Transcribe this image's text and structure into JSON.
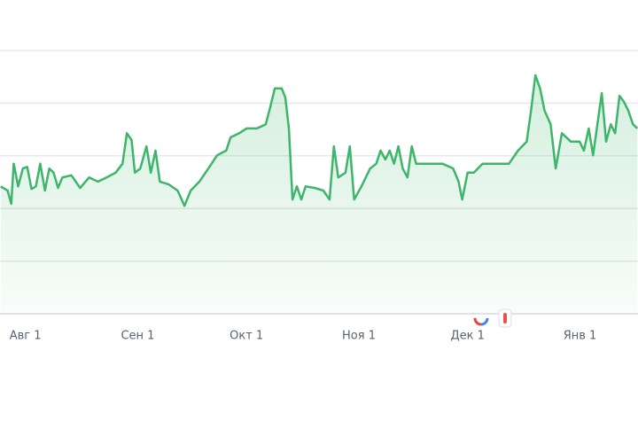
{
  "chart_data": {
    "type": "line",
    "x": [
      -6.8,
      -4.9,
      -3.9,
      -3.2,
      -2.0,
      -0.7,
      0.5,
      1.7,
      2.9,
      4.1,
      5.4,
      6.6,
      7.8,
      9.0,
      10.2,
      12.7,
      15.1,
      17.6,
      20.0,
      22.4,
      24.9,
      26.8,
      28.0,
      29.3,
      30.2,
      31.7,
      33.4,
      34.6,
      35.9,
      37.1,
      39.5,
      42.0,
      43.9,
      45.6,
      48.0,
      50.5,
      52.9,
      55.4,
      56.6,
      59.0,
      61.0,
      63.9,
      66.3,
      67.6,
      68.8,
      70.7,
      71.7,
      72.7,
      73.7,
      74.9,
      76.1,
      77.3,
      79.8,
      82.2,
      83.9,
      85.1,
      86.3,
      88.3,
      89.5,
      90.7,
      92.7,
      95.1,
      96.8,
      98.0,
      99.3,
      100.5,
      101.7,
      102.9,
      104.1,
      105.4,
      106.6,
      107.8,
      110.2,
      115.1,
      118.0,
      119.5,
      120.5,
      122.0,
      123.7,
      126.1,
      129.8,
      133.4,
      135.9,
      138.3,
      139.5,
      140.7,
      142.0,
      143.2,
      144.9,
      146.3,
      148.0,
      150.5,
      152.9,
      154.1,
      155.4,
      156.6,
      157.8,
      159.0,
      160.2,
      161.5,
      162.7,
      163.9,
      165.1,
      166.3,
      167.6,
      168.8
    ],
    "series": [
      {
        "color": "#3db56a",
        "values": [
          2.42,
          2.34,
          2.09,
          2.85,
          2.42,
          2.76,
          2.79,
          2.37,
          2.42,
          2.85,
          2.34,
          2.76,
          2.68,
          2.39,
          2.59,
          2.63,
          2.39,
          2.59,
          2.51,
          2.59,
          2.68,
          2.85,
          3.43,
          3.3,
          2.68,
          2.76,
          3.18,
          2.68,
          3.1,
          2.51,
          2.46,
          2.34,
          2.05,
          2.34,
          2.51,
          2.76,
          3.01,
          3.1,
          3.35,
          3.43,
          3.52,
          3.52,
          3.6,
          3.94,
          4.28,
          4.28,
          4.11,
          3.52,
          2.17,
          2.42,
          2.17,
          2.42,
          2.39,
          2.34,
          2.17,
          3.18,
          2.59,
          2.68,
          3.18,
          2.17,
          2.42,
          2.76,
          2.85,
          3.1,
          2.93,
          3.1,
          2.85,
          3.18,
          2.76,
          2.59,
          3.18,
          2.85,
          2.85,
          2.85,
          2.76,
          2.51,
          2.17,
          2.68,
          2.68,
          2.85,
          2.85,
          2.85,
          3.1,
          3.27,
          3.86,
          4.53,
          4.28,
          3.86,
          3.6,
          2.76,
          3.43,
          3.27,
          3.27,
          3.1,
          3.52,
          3.01,
          3.6,
          4.19,
          3.27,
          3.6,
          3.43,
          4.14,
          4.03,
          3.86,
          3.6,
          3.52
        ]
      }
    ],
    "xlim": [
      -7,
      169
    ],
    "xticks": [
      {
        "value": 0,
        "label": "Авг 1"
      },
      {
        "value": 31,
        "label": "Сен 1"
      },
      {
        "value": 61,
        "label": "Окт 1"
      },
      {
        "value": 92,
        "label": "Ноя 1"
      },
      {
        "value": 122,
        "label": "Дек 1"
      },
      {
        "value": 153,
        "label": "Янв 1"
      }
    ],
    "ylim": [
      0,
      5
    ],
    "ygrid": [
      0,
      1,
      2,
      3,
      4,
      5
    ]
  }
}
